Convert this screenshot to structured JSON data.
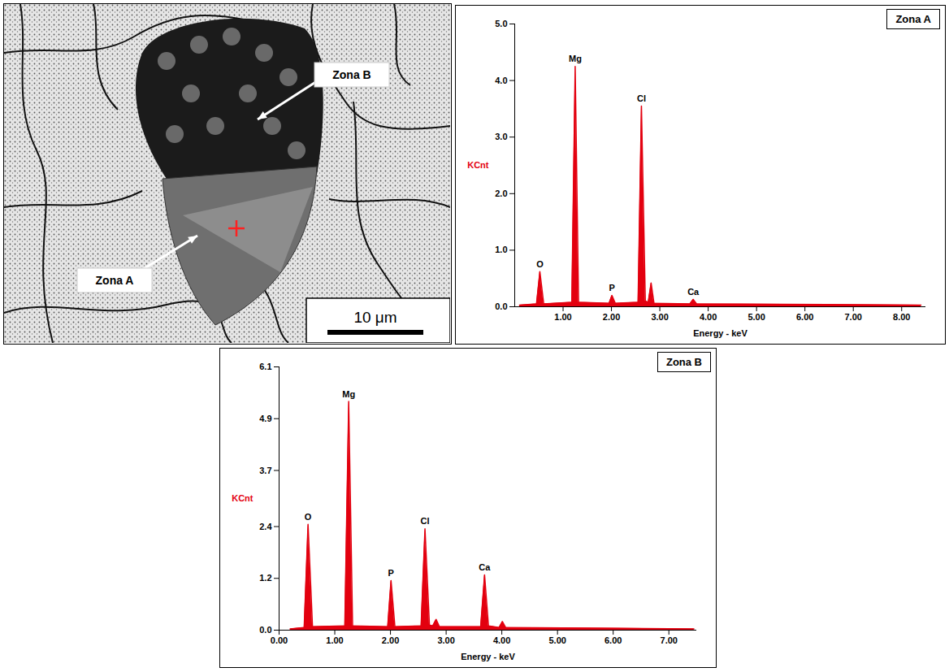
{
  "chart_data": [
    {
      "type": "line",
      "title": "Zona A",
      "x_label": "Energy - keV",
      "y_label": "KCnt",
      "color": "#e3000f",
      "xlim": [
        0,
        8.5
      ],
      "xticks": [
        {
          "value": 1,
          "label": "1.00"
        },
        {
          "value": 2,
          "label": "2.00"
        },
        {
          "value": 3,
          "label": "3.00"
        },
        {
          "value": 4,
          "label": "4.00"
        },
        {
          "value": 5,
          "label": "5.00"
        },
        {
          "value": 6,
          "label": "6.00"
        },
        {
          "value": 7,
          "label": "7.00"
        },
        {
          "value": 8,
          "label": "8.00"
        }
      ],
      "ylim": [
        0,
        5
      ],
      "yticks": [
        {
          "value": 0,
          "label": "0.0"
        },
        {
          "value": 1,
          "label": "1.0"
        },
        {
          "value": 2,
          "label": "2.0"
        },
        {
          "value": 3,
          "label": "3.0"
        },
        {
          "value": 4,
          "label": "4.0"
        },
        {
          "value": 5,
          "label": "5.0"
        }
      ],
      "grid": false,
      "x": [
        0.1,
        0.45,
        0.52,
        0.6,
        1.18,
        1.25,
        1.32,
        1.95,
        2.01,
        2.08,
        2.55,
        2.62,
        2.7,
        2.76,
        2.82,
        2.88,
        3.62,
        3.69,
        3.76,
        8.4
      ],
      "values": [
        0.03,
        0.05,
        0.62,
        0.05,
        0.08,
        4.25,
        0.08,
        0.06,
        0.2,
        0.06,
        0.08,
        3.55,
        0.1,
        0.08,
        0.42,
        0.06,
        0.05,
        0.13,
        0.05,
        0.03
      ],
      "annotations": [
        {
          "text": "O",
          "x": 0.52,
          "y": 0.62
        },
        {
          "text": "Mg",
          "x": 1.25,
          "y": 4.25
        },
        {
          "text": "P",
          "x": 2.01,
          "y": 0.2
        },
        {
          "text": "Cl",
          "x": 2.62,
          "y": 3.55
        },
        {
          "text": "Ca",
          "x": 3.69,
          "y": 0.13
        }
      ]
    },
    {
      "type": "line",
      "title": "Zona B",
      "x_label": "Energy - keV",
      "y_label": "KCnt",
      "color": "#e3000f",
      "xlim": [
        0,
        7.5
      ],
      "xticks": [
        {
          "value": 0,
          "label": "0.00"
        },
        {
          "value": 1,
          "label": "1.00"
        },
        {
          "value": 2,
          "label": "2.00"
        },
        {
          "value": 3,
          "label": "3.00"
        },
        {
          "value": 4,
          "label": "4.00"
        },
        {
          "value": 5,
          "label": "5.00"
        },
        {
          "value": 6,
          "label": "6.00"
        },
        {
          "value": 7,
          "label": "7.00"
        }
      ],
      "ylim": [
        0,
        6.1
      ],
      "yticks": [
        {
          "value": 0,
          "label": "0.0"
        },
        1.2,
        2.4,
        3.7,
        4.9,
        6.1
      ],
      "grid": false,
      "x": [
        0.2,
        0.45,
        0.52,
        0.6,
        1.18,
        1.25,
        1.32,
        1.95,
        2.01,
        2.08,
        2.55,
        2.62,
        2.7,
        2.76,
        2.82,
        2.88,
        3.62,
        3.69,
        3.76,
        3.95,
        4.01,
        4.07,
        7.45
      ],
      "values": [
        0.03,
        0.06,
        2.45,
        0.08,
        0.1,
        5.3,
        0.1,
        0.08,
        1.15,
        0.08,
        0.1,
        2.35,
        0.12,
        0.1,
        0.25,
        0.08,
        0.08,
        1.28,
        0.1,
        0.06,
        0.2,
        0.06,
        0.03
      ],
      "annotations": [
        {
          "text": "O",
          "x": 0.52,
          "y": 2.45
        },
        {
          "text": "Mg",
          "x": 1.25,
          "y": 5.3
        },
        {
          "text": "P",
          "x": 2.01,
          "y": 1.15
        },
        {
          "text": "Cl",
          "x": 2.62,
          "y": 2.35
        },
        {
          "text": "Ca",
          "x": 3.69,
          "y": 1.28
        }
      ]
    }
  ],
  "micrograph": {
    "labels": [
      "Zona A",
      "Zona B"
    ],
    "scale_bar": "10 μm"
  }
}
